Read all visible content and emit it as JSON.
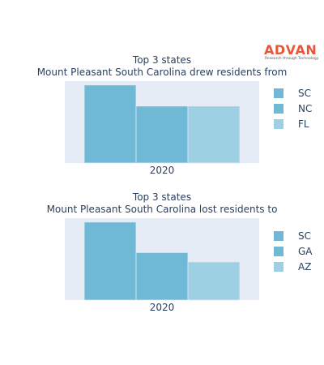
{
  "logo": {
    "brand": "ADVAN",
    "tagline": "Research through Technology",
    "color": "#e8563a"
  },
  "chart_data": [
    {
      "type": "bar",
      "title_line1": "Top 3 states",
      "title_line2": "Mount Pleasant South Carolina drew residents from",
      "categories": [
        "2020"
      ],
      "series": [
        {
          "name": "SC",
          "values": [
            1.0
          ],
          "color": "#6fb8d6"
        },
        {
          "name": "NC",
          "values": [
            0.73
          ],
          "color": "#6fb8d6"
        },
        {
          "name": "FL",
          "values": [
            0.73
          ],
          "color": "#9dd0e3"
        }
      ],
      "ylim": [
        0,
        1.05
      ],
      "grid": false,
      "legend": "right"
    },
    {
      "type": "bar",
      "title_line1": "Top 3 states",
      "title_line2": "Mount Pleasant South Carolina lost residents to",
      "categories": [
        "2020"
      ],
      "series": [
        {
          "name": "SC",
          "values": [
            1.0
          ],
          "color": "#6fb8d6"
        },
        {
          "name": "GA",
          "values": [
            0.61
          ],
          "color": "#6fb8d6"
        },
        {
          "name": "AZ",
          "values": [
            0.49
          ],
          "color": "#9dd0e3"
        }
      ],
      "ylim": [
        0,
        1.05
      ],
      "grid": false,
      "legend": "right"
    }
  ]
}
